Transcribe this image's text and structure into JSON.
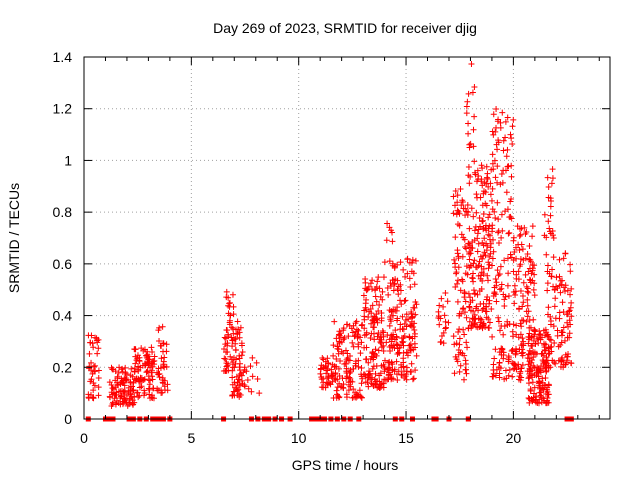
{
  "chart_data": {
    "type": "scatter",
    "title": "Day 269 of 2023, SRMTID for receiver djig",
    "xlabel": "GPS time / hours",
    "ylabel": "SRMTID / TECUs",
    "xlim": [
      0,
      24.5
    ],
    "ylim": [
      0,
      1.4
    ],
    "xticks": [
      0,
      5,
      10,
      15,
      20
    ],
    "xtick_labels": [
      "0",
      "5",
      "10",
      "15",
      "20"
    ],
    "yticks": [
      0,
      0.2,
      0.4,
      0.6,
      0.8,
      1.0,
      1.2,
      1.4
    ],
    "ytick_labels": [
      "0",
      "0.2",
      "0.4",
      "0.6",
      "0.8",
      "1",
      "1.2",
      "1.4"
    ],
    "grid": true,
    "marker": "+",
    "color": "#ff0000",
    "clusters": [
      {
        "x_start": 0.2,
        "x_end": 0.7,
        "y_min": 0.08,
        "y_max": 0.34,
        "count": 40
      },
      {
        "x_start": 1.2,
        "x_end": 2.4,
        "y_min": 0.05,
        "y_max": 0.2,
        "count": 100
      },
      {
        "x_start": 2.3,
        "x_end": 3.3,
        "y_min": 0.08,
        "y_max": 0.28,
        "count": 90
      },
      {
        "x_start": 3.4,
        "x_end": 3.9,
        "y_min": 0.1,
        "y_max": 0.36,
        "count": 40
      },
      {
        "x_start": 6.5,
        "x_end": 7.0,
        "y_min": 0.18,
        "y_max": 0.52,
        "count": 50
      },
      {
        "x_start": 6.9,
        "x_end": 7.5,
        "y_min": 0.08,
        "y_max": 0.38,
        "count": 60
      },
      {
        "x_start": 7.5,
        "x_end": 8.2,
        "y_min": 0.1,
        "y_max": 0.25,
        "count": 10
      },
      {
        "x_start": 11.0,
        "x_end": 11.6,
        "y_min": 0.12,
        "y_max": 0.25,
        "count": 40
      },
      {
        "x_start": 11.6,
        "x_end": 13.0,
        "y_min": 0.08,
        "y_max": 0.38,
        "count": 130
      },
      {
        "x_start": 13.0,
        "x_end": 14.0,
        "y_min": 0.12,
        "y_max": 0.55,
        "count": 140
      },
      {
        "x_start": 14.0,
        "x_end": 15.5,
        "y_min": 0.15,
        "y_max": 0.62,
        "count": 180
      },
      {
        "x_start": 14.1,
        "x_end": 14.4,
        "y_min": 0.68,
        "y_max": 0.77,
        "count": 6
      },
      {
        "x_start": 16.5,
        "x_end": 17.0,
        "y_min": 0.28,
        "y_max": 0.5,
        "count": 20
      },
      {
        "x_start": 17.2,
        "x_end": 17.9,
        "y_min": 0.15,
        "y_max": 0.9,
        "count": 90
      },
      {
        "x_start": 17.9,
        "x_end": 19.0,
        "y_min": 0.35,
        "y_max": 1.0,
        "count": 180
      },
      {
        "x_start": 17.8,
        "x_end": 18.2,
        "y_min": 1.05,
        "y_max": 1.4,
        "count": 15
      },
      {
        "x_start": 19.0,
        "x_end": 20.0,
        "y_min": 0.15,
        "y_max": 1.2,
        "count": 150
      },
      {
        "x_start": 20.0,
        "x_end": 21.0,
        "y_min": 0.15,
        "y_max": 0.75,
        "count": 140
      },
      {
        "x_start": 20.7,
        "x_end": 21.7,
        "y_min": 0.06,
        "y_max": 0.35,
        "count": 140
      },
      {
        "x_start": 21.4,
        "x_end": 21.9,
        "y_min": 0.7,
        "y_max": 0.97,
        "count": 20
      },
      {
        "x_start": 21.5,
        "x_end": 22.7,
        "y_min": 0.2,
        "y_max": 0.65,
        "count": 110
      }
    ],
    "zero_markers_x": [
      0.2,
      1.0,
      1.1,
      1.3,
      1.35,
      2.1,
      2.2,
      2.3,
      2.6,
      2.9,
      3.2,
      3.4,
      3.5,
      3.7,
      4.0,
      6.5,
      7.8,
      8.1,
      8.4,
      8.6,
      8.9,
      9.2,
      9.6,
      10.6,
      10.8,
      11.0,
      11.2,
      11.5,
      11.8,
      12.1,
      12.4,
      12.8,
      14.5,
      14.8,
      15.3,
      16.3,
      16.4,
      17.0,
      17.9,
      22.5,
      22.7
    ]
  }
}
